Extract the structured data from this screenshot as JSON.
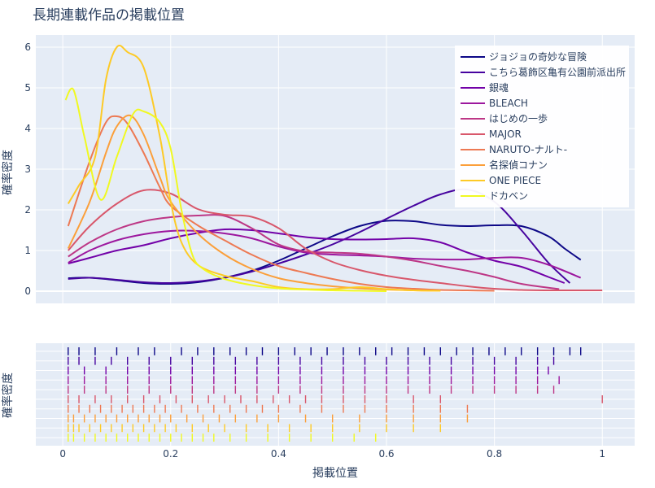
{
  "chart_data": {
    "type": "line",
    "title": "長期連載作品の掲載位置",
    "xlabel": "掲載位置",
    "ylabel_top": "確率密度",
    "ylabel_bottom": "確率密度",
    "xlim": [
      -0.05,
      1.06
    ],
    "ylim": [
      -0.3,
      6.3
    ],
    "x_ticks": [
      0,
      0.2,
      0.4,
      0.6,
      0.8,
      1
    ],
    "x_tick_labels": [
      "0",
      "0.2",
      "0.4",
      "0.6",
      "0.8",
      "1"
    ],
    "y_ticks": [
      0,
      1,
      2,
      3,
      4,
      5,
      6
    ],
    "y_tick_labels": [
      "0",
      "1",
      "2",
      "3",
      "4",
      "5",
      "6"
    ],
    "legend_position": "top-right",
    "series": [
      {
        "name": "ジョジョの奇妙な冒険",
        "color": "#0d0887",
        "x": [
          0.01,
          0.05,
          0.1,
          0.15,
          0.2,
          0.25,
          0.3,
          0.35,
          0.4,
          0.45,
          0.5,
          0.55,
          0.6,
          0.65,
          0.7,
          0.75,
          0.8,
          0.85,
          0.9,
          0.93,
          0.96
        ],
        "y": [
          0.32,
          0.33,
          0.27,
          0.2,
          0.18,
          0.22,
          0.33,
          0.5,
          0.75,
          1.05,
          1.35,
          1.6,
          1.73,
          1.72,
          1.63,
          1.6,
          1.62,
          1.6,
          1.35,
          1.05,
          0.77
        ],
        "rug": [
          0.01,
          0.03,
          0.06,
          0.1,
          0.14,
          0.17,
          0.22,
          0.25,
          0.28,
          0.31,
          0.34,
          0.37,
          0.4,
          0.43,
          0.46,
          0.49,
          0.52,
          0.55,
          0.58,
          0.61,
          0.64,
          0.67,
          0.7,
          0.73,
          0.76,
          0.79,
          0.82,
          0.85,
          0.88,
          0.91,
          0.94,
          0.96
        ]
      },
      {
        "name": "こちら葛飾区亀有公園前派出所",
        "color": "#46039f",
        "x": [
          0.01,
          0.05,
          0.1,
          0.15,
          0.2,
          0.25,
          0.3,
          0.35,
          0.4,
          0.45,
          0.5,
          0.55,
          0.6,
          0.65,
          0.7,
          0.75,
          0.8,
          0.85,
          0.9,
          0.94
        ],
        "y": [
          0.3,
          0.33,
          0.28,
          0.22,
          0.2,
          0.24,
          0.33,
          0.48,
          0.68,
          0.9,
          1.15,
          1.45,
          1.78,
          2.1,
          2.38,
          2.5,
          2.2,
          1.5,
          0.7,
          0.2
        ],
        "rug": [
          0.01,
          0.03,
          0.06,
          0.09,
          0.12,
          0.16,
          0.2,
          0.24,
          0.28,
          0.32,
          0.36,
          0.4,
          0.44,
          0.48,
          0.52,
          0.56,
          0.6,
          0.64,
          0.68,
          0.72,
          0.76,
          0.8,
          0.84,
          0.88,
          0.91
        ]
      },
      {
        "name": "銀魂",
        "color": "#7201a8",
        "x": [
          0.01,
          0.05,
          0.1,
          0.15,
          0.2,
          0.25,
          0.3,
          0.35,
          0.4,
          0.45,
          0.5,
          0.55,
          0.6,
          0.65,
          0.7,
          0.75,
          0.8,
          0.85,
          0.9,
          0.93
        ],
        "y": [
          0.68,
          0.82,
          1.0,
          1.13,
          1.3,
          1.43,
          1.52,
          1.5,
          1.42,
          1.33,
          1.28,
          1.27,
          1.28,
          1.3,
          1.2,
          0.95,
          0.75,
          0.6,
          0.35,
          0.2
        ],
        "rug": [
          0.01,
          0.04,
          0.08,
          0.12,
          0.16,
          0.2,
          0.24,
          0.28,
          0.32,
          0.36,
          0.4,
          0.44,
          0.48,
          0.52,
          0.56,
          0.6,
          0.64,
          0.68,
          0.72,
          0.76,
          0.8,
          0.84,
          0.88,
          0.9
        ]
      },
      {
        "name": "BLEACH",
        "color": "#9c179e",
        "x": [
          0.01,
          0.05,
          0.1,
          0.15,
          0.2,
          0.25,
          0.3,
          0.35,
          0.4,
          0.45,
          0.5,
          0.55,
          0.6,
          0.65,
          0.7,
          0.75,
          0.8,
          0.85,
          0.9,
          0.96
        ],
        "y": [
          0.7,
          1.0,
          1.25,
          1.4,
          1.48,
          1.48,
          1.42,
          1.3,
          1.1,
          0.95,
          0.9,
          0.88,
          0.85,
          0.8,
          0.78,
          0.78,
          0.82,
          0.82,
          0.65,
          0.33
        ],
        "rug": [
          0.01,
          0.04,
          0.08,
          0.12,
          0.16,
          0.2,
          0.24,
          0.28,
          0.32,
          0.36,
          0.4,
          0.44,
          0.48,
          0.52,
          0.56,
          0.6,
          0.64,
          0.68,
          0.72,
          0.76,
          0.8,
          0.84,
          0.88,
          0.92
        ]
      },
      {
        "name": "はじめの一歩",
        "color": "#bd3786",
        "x": [
          0.01,
          0.05,
          0.1,
          0.15,
          0.2,
          0.25,
          0.3,
          0.35,
          0.4,
          0.45,
          0.5,
          0.55,
          0.6,
          0.65,
          0.7,
          0.75,
          0.8,
          0.85,
          0.92
        ],
        "y": [
          0.85,
          1.2,
          1.52,
          1.72,
          1.82,
          1.86,
          1.85,
          1.55,
          1.15,
          0.98,
          0.95,
          0.92,
          0.85,
          0.75,
          0.62,
          0.5,
          0.35,
          0.18,
          0.05
        ],
        "rug": [
          0.01,
          0.04,
          0.08,
          0.12,
          0.16,
          0.2,
          0.24,
          0.28,
          0.32,
          0.36,
          0.4,
          0.44,
          0.48,
          0.52,
          0.56,
          0.6,
          0.64,
          0.68,
          0.72,
          0.76,
          0.8,
          0.84,
          0.88,
          0.91
        ]
      },
      {
        "name": "MAJOR",
        "color": "#d8576b",
        "x": [
          0.01,
          0.05,
          0.1,
          0.15,
          0.2,
          0.25,
          0.3,
          0.35,
          0.4,
          0.45,
          0.5,
          0.55,
          0.6,
          0.65,
          0.7,
          0.75,
          0.8,
          0.85,
          0.9,
          0.95,
          1.0
        ],
        "y": [
          1.0,
          1.6,
          2.15,
          2.48,
          2.4,
          2.02,
          1.88,
          1.83,
          1.55,
          1.05,
          0.72,
          0.52,
          0.38,
          0.28,
          0.2,
          0.12,
          0.06,
          0.03,
          0.02,
          0.02,
          0.02
        ],
        "rug": [
          0.01,
          0.03,
          0.06,
          0.09,
          0.12,
          0.15,
          0.18,
          0.21,
          0.24,
          0.27,
          0.3,
          0.33,
          0.36,
          0.39,
          0.42,
          0.45,
          0.48,
          0.52,
          0.56,
          0.6,
          0.65,
          0.7,
          1.0
        ]
      },
      {
        "name": "NARUTO-ナルト-",
        "color": "#ed7953",
        "x": [
          0.01,
          0.05,
          0.08,
          0.1,
          0.12,
          0.15,
          0.18,
          0.2,
          0.25,
          0.3,
          0.35,
          0.4,
          0.45,
          0.5,
          0.55,
          0.6,
          0.65,
          0.7,
          0.75,
          0.8
        ],
        "y": [
          1.6,
          3.2,
          4.15,
          4.3,
          4.12,
          3.4,
          2.55,
          2.1,
          1.62,
          1.25,
          0.9,
          0.62,
          0.45,
          0.3,
          0.18,
          0.1,
          0.06,
          0.03,
          0.02,
          0.01
        ],
        "rug": [
          0.01,
          0.03,
          0.05,
          0.07,
          0.09,
          0.11,
          0.13,
          0.15,
          0.17,
          0.19,
          0.22,
          0.25,
          0.28,
          0.31,
          0.34,
          0.37,
          0.4,
          0.44,
          0.48,
          0.52,
          0.56,
          0.6,
          0.65,
          0.7,
          0.75
        ]
      },
      {
        "name": "名探偵コナン",
        "color": "#fb9f3a",
        "x": [
          0.01,
          0.05,
          0.08,
          0.1,
          0.125,
          0.15,
          0.18,
          0.2,
          0.25,
          0.3,
          0.35,
          0.4,
          0.45,
          0.5,
          0.55,
          0.6,
          0.65,
          0.7
        ],
        "y": [
          1.05,
          2.2,
          3.4,
          4.05,
          4.32,
          3.85,
          2.8,
          2.2,
          1.42,
          0.9,
          0.55,
          0.32,
          0.2,
          0.12,
          0.07,
          0.04,
          0.02,
          0.01
        ],
        "rug": [
          0.01,
          0.02,
          0.04,
          0.06,
          0.08,
          0.1,
          0.12,
          0.14,
          0.16,
          0.18,
          0.2,
          0.23,
          0.26,
          0.29,
          0.32,
          0.36,
          0.4,
          0.45,
          0.5,
          0.55,
          0.6,
          0.65,
          0.7,
          0.75
        ]
      },
      {
        "name": "ONE PIECE",
        "color": "#fdca26",
        "x": [
          0.01,
          0.03,
          0.06,
          0.08,
          0.1,
          0.12,
          0.15,
          0.18,
          0.2,
          0.22,
          0.25,
          0.3,
          0.35,
          0.4,
          0.45,
          0.5,
          0.55,
          0.6,
          0.65,
          0.7
        ],
        "y": [
          2.15,
          2.6,
          3.3,
          5.2,
          6.0,
          5.88,
          5.5,
          3.8,
          2.2,
          1.2,
          0.65,
          0.38,
          0.25,
          0.1,
          0.05,
          0.05,
          0.1,
          0.05,
          0.02,
          0.01
        ],
        "rug": [
          0.01,
          0.02,
          0.03,
          0.05,
          0.07,
          0.09,
          0.11,
          0.13,
          0.15,
          0.17,
          0.19,
          0.21,
          0.24,
          0.27,
          0.3,
          0.34,
          0.38,
          0.42,
          0.46,
          0.5,
          0.55,
          0.6,
          0.65,
          0.7
        ]
      },
      {
        "name": "ドカベン",
        "color": "#f0f921",
        "x": [
          0.005,
          0.02,
          0.04,
          0.07,
          0.1,
          0.13,
          0.15,
          0.18,
          0.2,
          0.22,
          0.24,
          0.26,
          0.3,
          0.35,
          0.4,
          0.45,
          0.5,
          0.55,
          0.6
        ],
        "y": [
          4.7,
          4.95,
          3.8,
          2.25,
          3.3,
          4.35,
          4.42,
          4.15,
          3.5,
          2.0,
          0.9,
          0.55,
          0.3,
          0.15,
          0.07,
          0.04,
          0.02,
          0.01,
          0.0
        ],
        "rug": [
          0.01,
          0.02,
          0.04,
          0.06,
          0.08,
          0.1,
          0.12,
          0.14,
          0.16,
          0.18,
          0.2,
          0.22,
          0.24,
          0.26,
          0.28,
          0.31,
          0.34,
          0.38,
          0.42,
          0.46,
          0.5,
          0.54,
          0.58
        ]
      }
    ]
  }
}
